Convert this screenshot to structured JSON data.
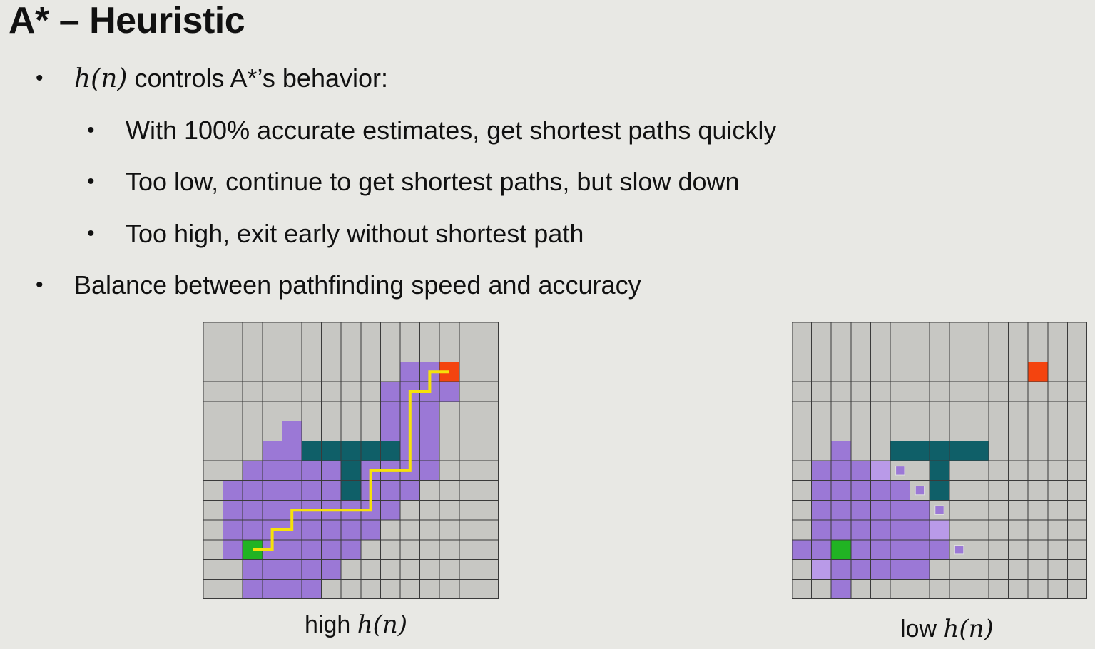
{
  "slide": {
    "title": "A* – Heuristic",
    "bullet1": {
      "math": "h(n)",
      "text": " controls A*’s behavior:"
    },
    "sub_bullets": [
      "With 100% accurate estimates, get shortest paths quickly",
      "Too low, continue to get shortest paths, but slow down",
      "Too high, exit early without shortest path"
    ],
    "bullet2": "Balance between pathfinding speed and accuracy"
  },
  "colors": {
    "background": "#e8e8e4",
    "grid_bg": "#c7c7c3",
    "grid_line": "#3a3a3a",
    "visited": "#9b78d6",
    "visited_light": "#b99ae8",
    "wall": "#0f5f68",
    "start": "#21b323",
    "goal": "#f4440f",
    "path": "#f6e20a"
  },
  "left_grid": {
    "caption_word": "high ",
    "caption_math": "h(n)",
    "cols": 15,
    "rows": 14,
    "visited": [
      [
        10,
        2
      ],
      [
        11,
        2
      ],
      [
        9,
        3
      ],
      [
        10,
        3
      ],
      [
        11,
        3
      ],
      [
        12,
        3
      ],
      [
        9,
        4
      ],
      [
        10,
        4
      ],
      [
        11,
        4
      ],
      [
        4,
        5
      ],
      [
        9,
        5
      ],
      [
        10,
        5
      ],
      [
        11,
        5
      ],
      [
        3,
        6
      ],
      [
        4,
        6
      ],
      [
        9,
        6
      ],
      [
        10,
        6
      ],
      [
        11,
        6
      ],
      [
        2,
        7
      ],
      [
        3,
        7
      ],
      [
        4,
        7
      ],
      [
        5,
        7
      ],
      [
        6,
        7
      ],
      [
        7,
        7
      ],
      [
        8,
        7
      ],
      [
        9,
        7
      ],
      [
        10,
        7
      ],
      [
        11,
        7
      ],
      [
        1,
        8
      ],
      [
        2,
        8
      ],
      [
        3,
        8
      ],
      [
        4,
        8
      ],
      [
        5,
        8
      ],
      [
        6,
        8
      ],
      [
        8,
        8
      ],
      [
        9,
        8
      ],
      [
        10,
        8
      ],
      [
        1,
        9
      ],
      [
        2,
        9
      ],
      [
        3,
        9
      ],
      [
        4,
        9
      ],
      [
        5,
        9
      ],
      [
        6,
        9
      ],
      [
        7,
        9
      ],
      [
        8,
        9
      ],
      [
        9,
        9
      ],
      [
        1,
        10
      ],
      [
        2,
        10
      ],
      [
        3,
        10
      ],
      [
        4,
        10
      ],
      [
        5,
        10
      ],
      [
        6,
        10
      ],
      [
        7,
        10
      ],
      [
        8,
        10
      ],
      [
        1,
        11
      ],
      [
        2,
        11
      ],
      [
        3,
        11
      ],
      [
        4,
        11
      ],
      [
        5,
        11
      ],
      [
        6,
        11
      ],
      [
        7,
        11
      ],
      [
        2,
        12
      ],
      [
        3,
        12
      ],
      [
        4,
        12
      ],
      [
        5,
        12
      ],
      [
        6,
        12
      ],
      [
        2,
        13
      ],
      [
        3,
        13
      ],
      [
        4,
        13
      ],
      [
        5,
        13
      ]
    ],
    "walls": [
      [
        5,
        6
      ],
      [
        6,
        6
      ],
      [
        7,
        6
      ],
      [
        8,
        6
      ],
      [
        9,
        6
      ],
      [
        7,
        7
      ],
      [
        7,
        8
      ]
    ],
    "start": [
      2,
      11
    ],
    "goal": [
      12,
      2
    ],
    "path": [
      [
        2.5,
        11.5
      ],
      [
        3.5,
        11.5
      ],
      [
        3.5,
        10.5
      ],
      [
        4.5,
        10.5
      ],
      [
        4.5,
        9.5
      ],
      [
        8.5,
        9.5
      ],
      [
        8.5,
        7.5
      ],
      [
        10.5,
        7.5
      ],
      [
        10.5,
        3.5
      ],
      [
        11.5,
        3.5
      ],
      [
        11.5,
        2.5
      ],
      [
        12.5,
        2.5
      ]
    ]
  },
  "right_grid": {
    "caption_word": "low ",
    "caption_math": "h(n)",
    "cols": 15,
    "rows": 14,
    "visited": [
      [
        2,
        6
      ],
      [
        1,
        7
      ],
      [
        2,
        7
      ],
      [
        3,
        7
      ],
      [
        4,
        7
      ],
      [
        1,
        8
      ],
      [
        2,
        8
      ],
      [
        3,
        8
      ],
      [
        4,
        8
      ],
      [
        5,
        8
      ],
      [
        1,
        9
      ],
      [
        2,
        9
      ],
      [
        3,
        9
      ],
      [
        4,
        9
      ],
      [
        5,
        9
      ],
      [
        6,
        9
      ],
      [
        1,
        10
      ],
      [
        2,
        10
      ],
      [
        3,
        10
      ],
      [
        4,
        10
      ],
      [
        5,
        10
      ],
      [
        6,
        10
      ],
      [
        7,
        10
      ],
      [
        0,
        11
      ],
      [
        1,
        11
      ],
      [
        3,
        11
      ],
      [
        4,
        11
      ],
      [
        5,
        11
      ],
      [
        6,
        11
      ],
      [
        7,
        11
      ],
      [
        1,
        12
      ],
      [
        2,
        12
      ],
      [
        3,
        12
      ],
      [
        4,
        12
      ],
      [
        5,
        12
      ],
      [
        6,
        12
      ],
      [
        2,
        13
      ]
    ],
    "visited_light": [
      [
        4,
        7
      ],
      [
        7,
        10
      ],
      [
        1,
        12
      ]
    ],
    "small_marks": [
      [
        5,
        7
      ],
      [
        6,
        8
      ],
      [
        7,
        9
      ],
      [
        8,
        11
      ]
    ],
    "walls": [
      [
        5,
        6
      ],
      [
        6,
        6
      ],
      [
        7,
        6
      ],
      [
        8,
        6
      ],
      [
        9,
        6
      ],
      [
        7,
        7
      ],
      [
        7,
        8
      ]
    ],
    "start": [
      2,
      11
    ],
    "goal": [
      12,
      2
    ]
  }
}
